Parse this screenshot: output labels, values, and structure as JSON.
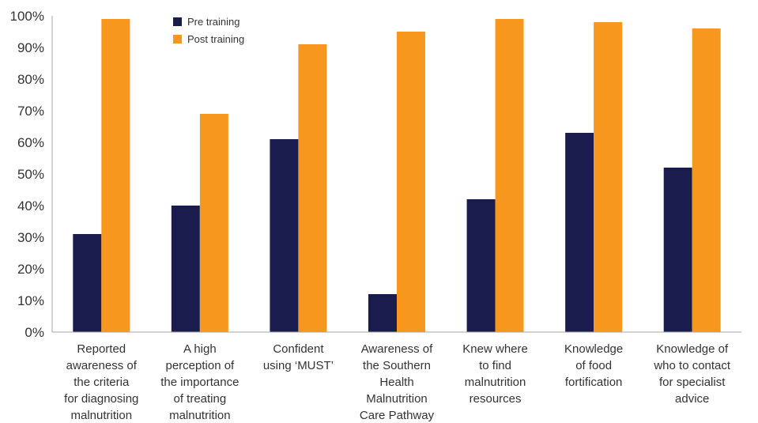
{
  "chart_data": {
    "type": "bar",
    "categories": [
      [
        "Reported",
        "awareness of",
        "the criteria",
        "for diagnosing",
        "malnutrition"
      ],
      [
        "A high",
        "perception of",
        "the importance",
        "of treating",
        "malnutrition"
      ],
      [
        "Confident",
        "using ‘MUST’"
      ],
      [
        "Awareness of",
        "the Southern",
        "Health",
        "Malnutrition",
        "Care Pathway"
      ],
      [
        "Knew where",
        "to find",
        "malnutrition",
        "resources"
      ],
      [
        "Knowledge",
        "of food",
        "fortification"
      ],
      [
        "Knowledge of",
        "who to contact",
        "for specialist",
        "advice"
      ]
    ],
    "series": [
      {
        "name": "Pre training",
        "color": "#1b1c4e",
        "values": [
          31,
          40,
          61,
          12,
          42,
          63,
          52
        ]
      },
      {
        "name": "Post training",
        "color": "#f7971e",
        "values": [
          99,
          69,
          91,
          95,
          99,
          98,
          96
        ]
      }
    ],
    "ylim": [
      0,
      100
    ],
    "yticks": [
      "0%",
      "10%",
      "20%",
      "30%",
      "40%",
      "50%",
      "60%",
      "70%",
      "80%",
      "90%",
      "100%"
    ],
    "grid": false,
    "legend_position": "top-left"
  }
}
